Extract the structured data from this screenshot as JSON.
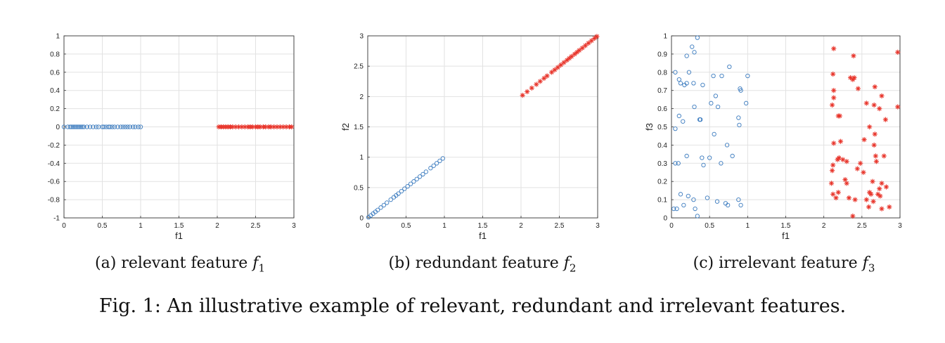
{
  "figure_caption": "Fig. 1: An illustrative example of relevant, redundant and irrelevant features.",
  "colors": {
    "class1": "#3b7bbf",
    "class2": "#e8342a",
    "grid": "#e2e2e2",
    "axis": "#333333"
  },
  "panels": [
    {
      "label": "(a)",
      "caption_text": "relevant feature",
      "caption_var": "f",
      "caption_sub": "1"
    },
    {
      "label": "(b)",
      "caption_text": "redundant feature",
      "caption_var": "f",
      "caption_sub": "2"
    },
    {
      "label": "(c)",
      "caption_text": "irrelevant feature",
      "caption_var": "f",
      "caption_sub": "3"
    }
  ],
  "chart_data": [
    {
      "type": "scatter",
      "xlabel": "f1",
      "ylabel": "",
      "xlim": [
        0,
        3
      ],
      "ylim": [
        -1,
        1
      ],
      "xticks": [
        "0",
        "0.5",
        "1",
        "1.5",
        "2",
        "2.5",
        "3"
      ],
      "yticks": [
        "-1",
        "-0.8",
        "-0.6",
        "-0.4",
        "-0.2",
        "0",
        "0.2",
        "0.4",
        "0.6",
        "0.8",
        "1"
      ],
      "grid": true,
      "series": [
        {
          "marker": "circle",
          "x": [
            0,
            0.05,
            0.08,
            0.1,
            0.12,
            0.14,
            0.16,
            0.18,
            0.2,
            0.22,
            0.24,
            0.26,
            0.3,
            0.34,
            0.38,
            0.42,
            0.45,
            0.5,
            0.52,
            0.55,
            0.58,
            0.6,
            0.63,
            0.66,
            0.7,
            0.74,
            0.77,
            0.8,
            0.83,
            0.86,
            0.9,
            0.93,
            0.97,
            1.0
          ],
          "y": [
            0,
            0,
            0,
            0,
            0,
            0,
            0,
            0,
            0,
            0,
            0,
            0,
            0,
            0,
            0,
            0,
            0,
            0,
            0,
            0,
            0,
            0,
            0,
            0,
            0,
            0,
            0,
            0,
            0,
            0,
            0,
            0,
            0,
            0
          ]
        },
        {
          "marker": "star",
          "x": [
            2.02,
            2.05,
            2.08,
            2.11,
            2.14,
            2.17,
            2.2,
            2.24,
            2.28,
            2.32,
            2.36,
            2.4,
            2.43,
            2.46,
            2.5,
            2.53,
            2.56,
            2.6,
            2.63,
            2.67,
            2.7,
            2.74,
            2.78,
            2.82,
            2.86,
            2.9,
            2.94,
            2.97
          ],
          "y": [
            0,
            0,
            0,
            0,
            0,
            0,
            0,
            0,
            0,
            0,
            0,
            0,
            0,
            0,
            0,
            0,
            0,
            0,
            0,
            0,
            0,
            0,
            0,
            0,
            0,
            0,
            0,
            0
          ]
        }
      ]
    },
    {
      "type": "scatter",
      "xlabel": "f1",
      "ylabel": "f2",
      "xlim": [
        0,
        3
      ],
      "ylim": [
        0,
        3
      ],
      "xticks": [
        "0",
        "0.5",
        "1",
        "1.5",
        "2",
        "2.5",
        "3"
      ],
      "yticks": [
        "0",
        "0.5",
        "1",
        "1.5",
        "2",
        "2.5",
        "3"
      ],
      "grid": true,
      "series": [
        {
          "marker": "circle",
          "x": [
            0.01,
            0.04,
            0.07,
            0.1,
            0.13,
            0.17,
            0.21,
            0.25,
            0.3,
            0.34,
            0.37,
            0.4,
            0.44,
            0.48,
            0.52,
            0.56,
            0.6,
            0.64,
            0.68,
            0.72,
            0.76,
            0.82,
            0.86,
            0.9,
            0.94,
            0.98
          ],
          "y": [
            0.01,
            0.04,
            0.07,
            0.1,
            0.13,
            0.17,
            0.21,
            0.25,
            0.3,
            0.34,
            0.37,
            0.4,
            0.44,
            0.48,
            0.52,
            0.56,
            0.6,
            0.64,
            0.68,
            0.72,
            0.76,
            0.82,
            0.86,
            0.9,
            0.94,
            0.98
          ]
        },
        {
          "marker": "star",
          "x": [
            2.02,
            2.08,
            2.14,
            2.2,
            2.25,
            2.3,
            2.34,
            2.4,
            2.44,
            2.48,
            2.52,
            2.56,
            2.6,
            2.63,
            2.66,
            2.7,
            2.73,
            2.76,
            2.8,
            2.84,
            2.88,
            2.92,
            2.96,
            2.99
          ],
          "y": [
            2.02,
            2.08,
            2.14,
            2.2,
            2.25,
            2.3,
            2.34,
            2.4,
            2.44,
            2.48,
            2.52,
            2.56,
            2.6,
            2.63,
            2.66,
            2.7,
            2.73,
            2.76,
            2.8,
            2.84,
            2.88,
            2.92,
            2.96,
            2.99
          ]
        }
      ]
    },
    {
      "type": "scatter",
      "xlabel": "f1",
      "ylabel": "f3",
      "xlim": [
        0,
        3
      ],
      "ylim": [
        0,
        1
      ],
      "xticks": [
        "0",
        "0.5",
        "1",
        "1.5",
        "2",
        "2.5",
        "3"
      ],
      "yticks": [
        "0",
        "0.1",
        "0.2",
        "0.3",
        "0.4",
        "0.5",
        "0.6",
        "0.7",
        "0.8",
        "0.9",
        "1"
      ],
      "grid": true,
      "series": [
        {
          "marker": "circle",
          "x": [
            0.34,
            0.27,
            0.3,
            0.2,
            0.23,
            0.05,
            0.1,
            0.12,
            0.17,
            0.2,
            0.29,
            0.41,
            0.55,
            0.58,
            0.66,
            0.76,
            0.9,
            0.91,
            1.0,
            0.52,
            0.98,
            0.3,
            0.37,
            0.61,
            0.88,
            0.89,
            0.05,
            0.1,
            0.15,
            0.38,
            0.56,
            0.5,
            0.73,
            0.8,
            0.4,
            0.42,
            0.05,
            0.09,
            0.65,
            0.12,
            0.2,
            0.22,
            0.29,
            0.47,
            0.6,
            0.71,
            0.74,
            0.88,
            0.91,
            0.03,
            0.07,
            0.16,
            0.31,
            0.34
          ],
          "y": [
            0.99,
            0.94,
            0.91,
            0.89,
            0.8,
            0.8,
            0.76,
            0.74,
            0.73,
            0.74,
            0.74,
            0.73,
            0.78,
            0.67,
            0.78,
            0.83,
            0.71,
            0.7,
            0.78,
            0.63,
            0.63,
            0.61,
            0.54,
            0.61,
            0.55,
            0.51,
            0.49,
            0.56,
            0.53,
            0.54,
            0.46,
            0.33,
            0.4,
            0.34,
            0.33,
            0.29,
            0.3,
            0.3,
            0.3,
            0.13,
            0.34,
            0.12,
            0.1,
            0.11,
            0.09,
            0.08,
            0.07,
            0.1,
            0.07,
            0.05,
            0.05,
            0.07,
            0.05,
            0.01
          ]
        },
        {
          "marker": "star",
          "x": [
            2.13,
            2.39,
            2.97,
            2.12,
            2.13,
            2.35,
            2.38,
            2.4,
            2.45,
            2.67,
            2.13,
            2.56,
            2.76,
            2.11,
            2.19,
            2.21,
            2.66,
            2.73,
            2.81,
            2.6,
            2.67,
            2.97,
            2.66,
            2.13,
            2.22,
            2.53,
            2.68,
            2.79,
            2.18,
            2.2,
            2.25,
            2.3,
            2.69,
            2.12,
            2.11,
            2.28,
            2.44,
            2.48,
            2.64,
            2.1,
            2.19,
            2.3,
            2.52,
            2.76,
            2.73,
            2.6,
            2.12,
            2.16,
            2.62,
            2.71,
            2.74,
            2.82,
            2.33,
            2.41,
            2.56,
            2.65,
            2.76,
            2.59,
            2.86,
            2.38
          ],
          "y": [
            0.93,
            0.89,
            0.91,
            0.79,
            0.7,
            0.77,
            0.76,
            0.77,
            0.71,
            0.72,
            0.66,
            0.63,
            0.67,
            0.62,
            0.56,
            0.56,
            0.62,
            0.6,
            0.54,
            0.5,
            0.46,
            0.61,
            0.4,
            0.41,
            0.42,
            0.43,
            0.34,
            0.34,
            0.32,
            0.33,
            0.32,
            0.31,
            0.31,
            0.29,
            0.26,
            0.21,
            0.27,
            0.3,
            0.2,
            0.19,
            0.14,
            0.19,
            0.25,
            0.19,
            0.16,
            0.14,
            0.13,
            0.11,
            0.13,
            0.13,
            0.12,
            0.17,
            0.11,
            0.1,
            0.1,
            0.09,
            0.05,
            0.06,
            0.06,
            0.01
          ]
        }
      ]
    }
  ]
}
